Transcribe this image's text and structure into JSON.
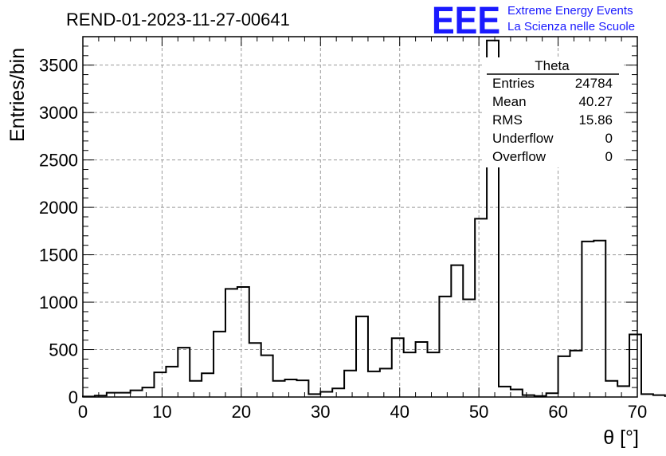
{
  "run_title": "REND-01-2023-11-27-00641",
  "logo": {
    "mark": "EEE",
    "line1": "Extreme Energy Events",
    "line2": "La Scienza nelle Scuole"
  },
  "stats": {
    "name": "Theta",
    "rows": [
      {
        "label": "Entries",
        "value": "24784"
      },
      {
        "label": "Mean",
        "value": "40.27"
      },
      {
        "label": "RMS",
        "value": "15.86"
      },
      {
        "label": "Underflow",
        "value": "0"
      },
      {
        "label": "Overflow",
        "value": "0"
      }
    ]
  },
  "chart_data": {
    "type": "histogram",
    "title": "REND-01-2023-11-27-00641",
    "xlabel": "θ [°]",
    "ylabel": "Entries/bin",
    "xlim": [
      0,
      70
    ],
    "ylim": [
      0,
      3800
    ],
    "bin_width": 1.5,
    "bin_start": 0,
    "x_ticks": [
      0,
      10,
      20,
      30,
      40,
      50,
      60,
      70
    ],
    "y_ticks": [
      0,
      500,
      1000,
      1500,
      2000,
      2500,
      3000,
      3500
    ],
    "grid": true,
    "legend_position": "top-right",
    "values": [
      5,
      15,
      45,
      45,
      70,
      100,
      260,
      320,
      520,
      170,
      250,
      690,
      1140,
      1160,
      570,
      440,
      170,
      185,
      175,
      30,
      55,
      90,
      280,
      850,
      270,
      300,
      620,
      470,
      580,
      470,
      1060,
      1390,
      1030,
      1880,
      3760,
      110,
      80,
      20,
      10,
      40,
      430,
      490,
      1640,
      1650,
      170,
      115,
      660,
      30,
      20
    ]
  }
}
